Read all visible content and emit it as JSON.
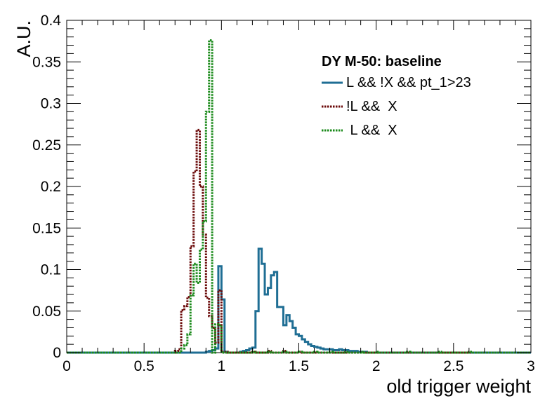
{
  "chart_data": {
    "type": "line",
    "title": "",
    "xlabel": "old trigger weight",
    "ylabel": "A.U.",
    "xlim": [
      0,
      3
    ],
    "ylim": [
      0,
      0.4
    ],
    "x_ticks": [
      "0",
      "0.5",
      "1",
      "1.5",
      "2",
      "2.5",
      "3"
    ],
    "y_ticks": [
      "0",
      "0.05",
      "0.1",
      "0.15",
      "0.2",
      "0.25",
      "0.3",
      "0.35",
      "0.4"
    ],
    "bin_width": 0.02,
    "legend": {
      "header": "DY M-50: baseline",
      "position": "top-right"
    },
    "grid": false,
    "series": [
      {
        "name": "L && !X && pt_1>23",
        "color": "#1f6e94",
        "style": "solid",
        "x": [
          0.9,
          0.92,
          0.94,
          0.96,
          0.98,
          1.0,
          1.02,
          1.04,
          1.06,
          1.08,
          1.1,
          1.12,
          1.14,
          1.16,
          1.18,
          1.2,
          1.22,
          1.24,
          1.26,
          1.28,
          1.3,
          1.32,
          1.34,
          1.36,
          1.38,
          1.4,
          1.42,
          1.44,
          1.46,
          1.48,
          1.5,
          1.52,
          1.54,
          1.56,
          1.58,
          1.6,
          1.62,
          1.64,
          1.66,
          1.68,
          1.7,
          1.72,
          1.74,
          1.76,
          1.78,
          1.8,
          1.82,
          1.84,
          1.86,
          1.88,
          1.9,
          1.92,
          1.94
        ],
        "values": [
          0.001,
          0.002,
          0.003,
          0.005,
          0.104,
          0.064,
          0.001,
          0.0,
          0.0,
          0.0,
          0.0,
          0.001,
          0.002,
          0.003,
          0.005,
          0.006,
          0.05,
          0.125,
          0.107,
          0.07,
          0.078,
          0.093,
          0.097,
          0.055,
          0.055,
          0.033,
          0.045,
          0.038,
          0.03,
          0.022,
          0.02,
          0.016,
          0.013,
          0.01,
          0.008,
          0.007,
          0.006,
          0.005,
          0.004,
          0.004,
          0.004,
          0.003,
          0.003,
          0.004,
          0.003,
          0.003,
          0.002,
          0.002,
          0.002,
          0.001,
          0.001,
          0.001,
          0.0
        ]
      },
      {
        "name": "!L &&  X",
        "color": "#6b0a0a",
        "style": "dotted",
        "x": [
          0.7,
          0.72,
          0.74,
          0.76,
          0.78,
          0.8,
          0.82,
          0.84,
          0.86,
          0.88,
          0.9,
          0.92,
          0.94,
          0.96,
          0.98,
          1.0,
          1.02,
          1.04,
          1.06,
          1.1,
          1.2,
          1.3,
          1.4,
          1.5
        ],
        "values": [
          0.002,
          0.004,
          0.051,
          0.056,
          0.067,
          0.128,
          0.218,
          0.268,
          0.2,
          0.142,
          0.066,
          0.044,
          0.03,
          0.012,
          0.075,
          0.001,
          0.001,
          0.0,
          0.0,
          0.0,
          0.001,
          0.002,
          0.002,
          0.001
        ]
      },
      {
        "name": " L &&  X",
        "color": "#1a8a1a",
        "style": "dotted",
        "x": [
          0.74,
          0.76,
          0.78,
          0.8,
          0.82,
          0.84,
          0.86,
          0.88,
          0.9,
          0.92,
          0.94,
          0.96,
          0.98,
          1.0,
          1.02,
          1.1,
          1.2,
          1.3,
          1.4,
          1.5,
          1.6,
          1.7,
          1.8,
          1.9,
          2.0,
          2.2,
          2.4,
          2.6,
          2.8
        ],
        "values": [
          0.005,
          0.009,
          0.022,
          0.069,
          0.107,
          0.084,
          0.124,
          0.158,
          0.29,
          0.376,
          0.0,
          0.034,
          0.033,
          0.0,
          0.0,
          0.0,
          0.001,
          0.001,
          0.001,
          0.001,
          0.001,
          0.001,
          0.001,
          0.001,
          0.001,
          0.001,
          0.001,
          0.001,
          0.0
        ]
      }
    ]
  }
}
